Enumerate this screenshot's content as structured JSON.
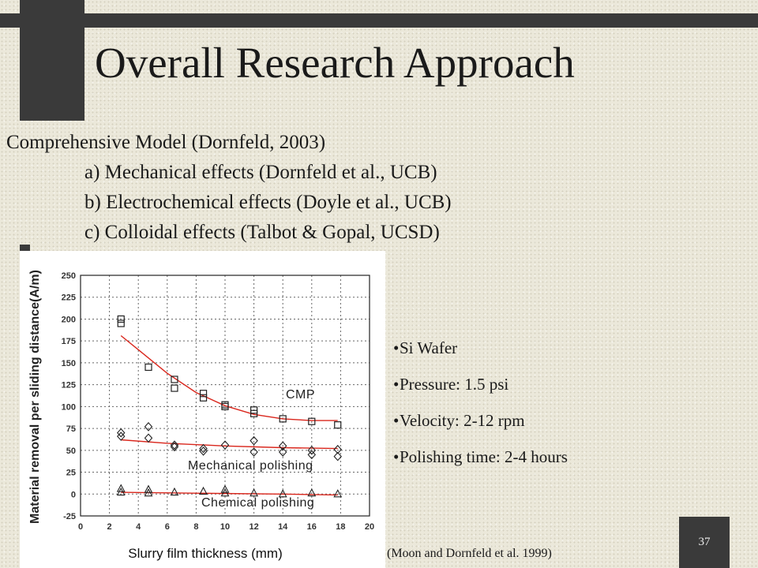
{
  "slide": {
    "title": "Overall Research Approach",
    "lines": [
      "Comprehensive  Model  (Dornfeld, 2003)",
      "a) Mechanical effects (Dornfeld et al., UCB)",
      "b) Electrochemical effects (Doyle et al., UCB)",
      "c) Colloidal effects (Talbot & Gopal, UCSD)"
    ],
    "bullets": [
      "Si Wafer",
      "Pressure: 1.5 psi",
      "Velocity: 2-12 rpm",
      "Polishing time: 2-4 hours"
    ],
    "bullet_glyph": "•",
    "citation": "(Moon and Dornfeld et al. 1999)",
    "page_number": "37"
  },
  "colors": {
    "background": "#ebe8da",
    "dark_band": "#3a3a3a",
    "fit_curve": "#d9261c"
  },
  "chart_data": {
    "type": "scatter",
    "xlabel": "Slurry film thickness (mm)",
    "ylabel": "Material removal per sliding distance(A/m)",
    "xlim": [
      0,
      20
    ],
    "ylim": [
      -25,
      250
    ],
    "x_ticks": [
      0,
      2,
      4,
      6,
      8,
      10,
      12,
      14,
      16,
      18,
      20
    ],
    "y_ticks": [
      -25,
      0,
      25,
      50,
      75,
      100,
      125,
      150,
      175,
      200,
      225,
      250
    ],
    "grid": true,
    "annotations": [
      "CMP",
      "Mechanical polishing",
      "Chemical polishing"
    ],
    "series": [
      {
        "marker": "square",
        "points": [
          [
            2.8,
            200
          ],
          [
            2.8,
            195
          ],
          [
            4.7,
            145
          ],
          [
            6.5,
            131
          ],
          [
            6.5,
            121
          ],
          [
            8.5,
            115
          ],
          [
            8.5,
            110
          ],
          [
            10,
            102
          ],
          [
            10,
            100
          ],
          [
            12,
            96
          ],
          [
            12,
            92
          ],
          [
            14,
            86
          ],
          [
            16,
            83
          ],
          [
            17.8,
            79
          ]
        ],
        "fit": [
          [
            2.8,
            181
          ],
          [
            4,
            165
          ],
          [
            6,
            138
          ],
          [
            8,
            116
          ],
          [
            10,
            101
          ],
          [
            12,
            91
          ],
          [
            14,
            86
          ],
          [
            16,
            84
          ],
          [
            17.8,
            84
          ]
        ]
      },
      {
        "marker": "diamond",
        "points": [
          [
            2.8,
            70
          ],
          [
            2.8,
            66
          ],
          [
            4.7,
            77
          ],
          [
            4.7,
            64
          ],
          [
            6.5,
            56
          ],
          [
            6.5,
            54
          ],
          [
            8.5,
            52
          ],
          [
            8.5,
            49
          ],
          [
            10,
            56
          ],
          [
            12,
            61
          ],
          [
            12,
            48
          ],
          [
            14,
            55
          ],
          [
            14,
            48
          ],
          [
            16,
            50
          ],
          [
            16,
            45
          ],
          [
            17.8,
            51
          ],
          [
            17.8,
            43
          ]
        ],
        "fit": [
          [
            2.8,
            62
          ],
          [
            6,
            58
          ],
          [
            10,
            55
          ],
          [
            14,
            53
          ],
          [
            17.8,
            52
          ]
        ]
      },
      {
        "marker": "triangle",
        "points": [
          [
            2.8,
            6
          ],
          [
            2.8,
            2
          ],
          [
            4.7,
            5
          ],
          [
            4.7,
            1
          ],
          [
            6.5,
            2
          ],
          [
            8.5,
            3
          ],
          [
            10,
            5
          ],
          [
            10,
            1
          ],
          [
            12,
            1
          ],
          [
            14,
            0
          ],
          [
            16,
            1
          ],
          [
            17.8,
            0
          ]
        ],
        "fit": [
          [
            2.8,
            2
          ],
          [
            8,
            1
          ],
          [
            14,
            0
          ],
          [
            17.8,
            -1
          ]
        ]
      }
    ]
  }
}
